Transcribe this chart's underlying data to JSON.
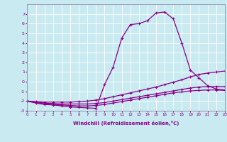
{
  "xlabel": "Windchill (Refroidissement éolien,°C)",
  "background_color": "#c8eaf0",
  "line_color": "#880088",
  "xlim": [
    0,
    23
  ],
  "ylim": [
    -3,
    8
  ],
  "xticks": [
    0,
    1,
    2,
    3,
    4,
    5,
    6,
    7,
    8,
    9,
    10,
    11,
    12,
    13,
    14,
    15,
    16,
    17,
    18,
    19,
    20,
    21,
    22,
    23
  ],
  "yticks": [
    -3,
    -2,
    -1,
    0,
    1,
    2,
    3,
    4,
    5,
    6,
    7
  ],
  "series": [
    {
      "x": [
        0,
        1,
        2,
        3,
        4,
        5,
        6,
        7,
        8,
        9,
        10,
        11,
        12,
        13,
        14,
        15,
        16,
        17,
        18,
        19,
        20,
        21,
        22,
        23
      ],
      "y": [
        -2.0,
        -2.2,
        -2.35,
        -2.4,
        -2.5,
        -2.6,
        -2.65,
        -2.7,
        -2.75,
        -0.3,
        1.5,
        4.5,
        5.9,
        6.0,
        6.3,
        7.1,
        7.2,
        6.5,
        4.0,
        1.2,
        0.4,
        -0.4,
        -0.75,
        -0.85
      ]
    },
    {
      "x": [
        0,
        1,
        2,
        3,
        4,
        5,
        6,
        7,
        8,
        9,
        10,
        11,
        12,
        13,
        14,
        15,
        16,
        17,
        18,
        19,
        20,
        21,
        22,
        23
      ],
      "y": [
        -2.0,
        -2.05,
        -2.1,
        -2.1,
        -2.1,
        -2.1,
        -2.05,
        -2.0,
        -1.9,
        -1.75,
        -1.55,
        -1.35,
        -1.15,
        -0.95,
        -0.75,
        -0.55,
        -0.3,
        -0.05,
        0.2,
        0.5,
        0.75,
        0.9,
        1.0,
        1.1
      ]
    },
    {
      "x": [
        0,
        1,
        2,
        3,
        4,
        5,
        6,
        7,
        8,
        9,
        10,
        11,
        12,
        13,
        14,
        15,
        16,
        17,
        18,
        19,
        20,
        21,
        22,
        23
      ],
      "y": [
        -2.0,
        -2.1,
        -2.2,
        -2.25,
        -2.3,
        -2.3,
        -2.3,
        -2.3,
        -2.25,
        -2.15,
        -2.0,
        -1.85,
        -1.7,
        -1.55,
        -1.4,
        -1.25,
        -1.1,
        -0.95,
        -0.8,
        -0.65,
        -0.55,
        -0.5,
        -0.5,
        -0.5
      ]
    },
    {
      "x": [
        0,
        1,
        2,
        3,
        4,
        5,
        6,
        7,
        8,
        9,
        10,
        11,
        12,
        13,
        14,
        15,
        16,
        17,
        18,
        19,
        20,
        21,
        22,
        23
      ],
      "y": [
        -2.0,
        -2.15,
        -2.3,
        -2.35,
        -2.4,
        -2.45,
        -2.5,
        -2.5,
        -2.45,
        -2.35,
        -2.2,
        -2.05,
        -1.9,
        -1.75,
        -1.6,
        -1.45,
        -1.3,
        -1.15,
        -1.05,
        -0.95,
        -0.9,
        -0.85,
        -0.85,
        -0.9
      ]
    }
  ]
}
